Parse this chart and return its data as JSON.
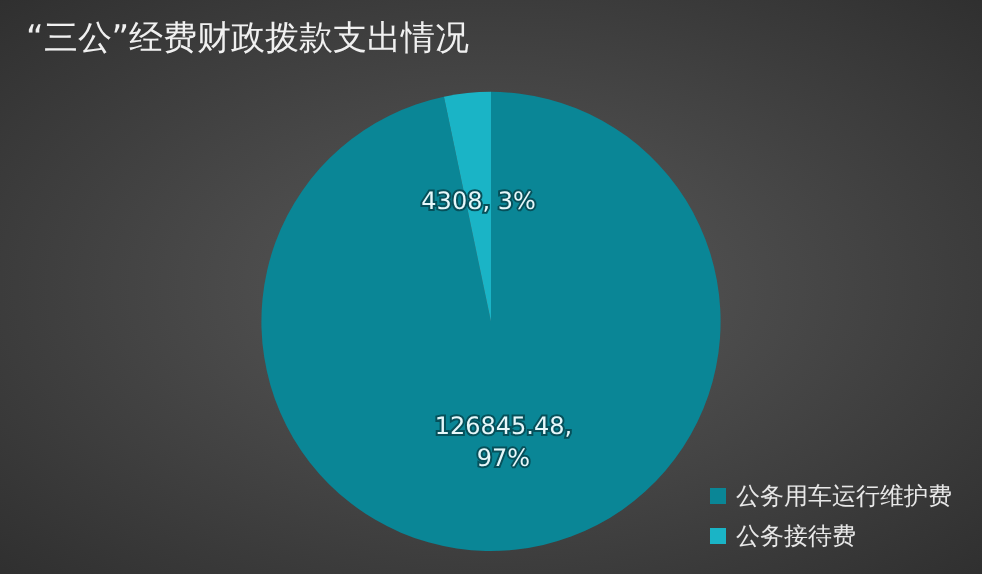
{
  "chart_data": {
    "type": "pie",
    "title": "“三公”经费财政拨款支出情况",
    "categories": [
      "公务用车运行维护费",
      "公务接待费"
    ],
    "values": [
      126845.48,
      4308
    ],
    "colors": [
      "#0a8696",
      "#1ab4c6"
    ],
    "value_labels": [
      "126845.48,\n97%",
      "4308, 3%"
    ],
    "legend": "bottom right"
  }
}
